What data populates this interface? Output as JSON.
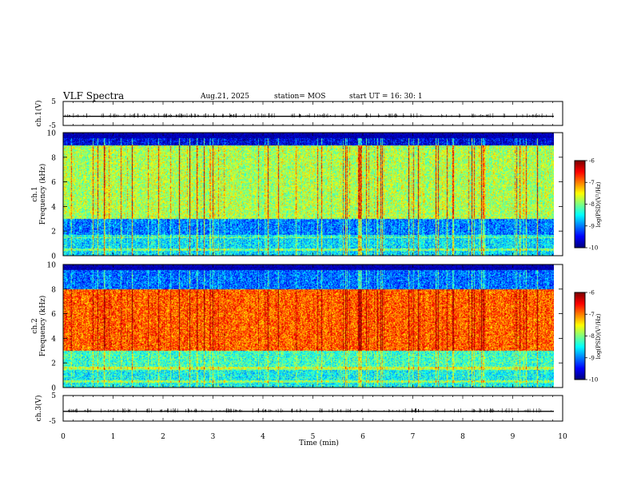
{
  "header": {
    "title": "VLF Spectra",
    "date": "Aug.21, 2025",
    "station": "station= MOS",
    "start": "start  UT =   16: 30: 1"
  },
  "chart_data": [
    {
      "type": "line",
      "name": "ch1-waveform",
      "ylabel": "ch.1(V)",
      "ylim": [
        -5,
        5
      ],
      "yticks": [
        5,
        -5
      ],
      "baseline": -1.2,
      "xlim": [
        0,
        10
      ]
    },
    {
      "type": "heatmap",
      "name": "ch1-spectrogram",
      "ylabel_line1": "ch.1",
      "ylabel_line2": "Frequency (kHz)",
      "xlim": [
        0,
        9.85
      ],
      "ylim": [
        0,
        10
      ],
      "yticks": [
        0,
        2,
        4,
        6,
        8,
        10
      ],
      "colorbar": {
        "label": "log(PSD)(V²/Hz)",
        "range": [
          -10,
          -6
        ],
        "ticks": [
          -6,
          -7,
          -8,
          -9,
          -10
        ]
      },
      "typical_levels_log_psd": [
        {
          "freq_khz_range": [
            0,
            1.5
          ],
          "level": -8.8
        },
        {
          "freq_khz_range": [
            1.5,
            3
          ],
          "level": -9.2
        },
        {
          "freq_khz_range": [
            3,
            9
          ],
          "level": -8.0
        },
        {
          "freq_khz_range": [
            9,
            10
          ],
          "level": -9.8
        }
      ]
    },
    {
      "type": "heatmap",
      "name": "ch2-spectrogram",
      "ylabel_line1": "ch.2",
      "ylabel_line2": "Frequency (kHz)",
      "xlim": [
        0,
        9.85
      ],
      "ylim": [
        0,
        10
      ],
      "yticks": [
        0,
        2,
        4,
        6,
        8,
        10
      ],
      "colorbar": {
        "label": "log(PSD)(V²/Hz)",
        "range": [
          -10,
          -6
        ],
        "ticks": [
          -6,
          -7,
          -8,
          -9,
          -10
        ]
      },
      "typical_levels_log_psd": [
        {
          "freq_khz_range": [
            0,
            1.5
          ],
          "level": -8.6
        },
        {
          "freq_khz_range": [
            1.5,
            3
          ],
          "level": -8.4
        },
        {
          "freq_khz_range": [
            3,
            8
          ],
          "level": -7.0
        },
        {
          "freq_khz_range": [
            8,
            10
          ],
          "level": -9.2
        }
      ]
    },
    {
      "type": "line",
      "name": "ch3-waveform",
      "ylabel": "ch.3(V)",
      "ylim": [
        -5,
        5
      ],
      "yticks": [
        5,
        -5
      ],
      "baseline": -1.2,
      "xlim": [
        0,
        10
      ]
    }
  ],
  "xaxis": {
    "label": "Time  (min)",
    "range": [
      0,
      10
    ],
    "ticks": [
      "0",
      "1",
      "2",
      "3",
      "4",
      "5",
      "6",
      "7",
      "8",
      "9",
      "10"
    ]
  }
}
